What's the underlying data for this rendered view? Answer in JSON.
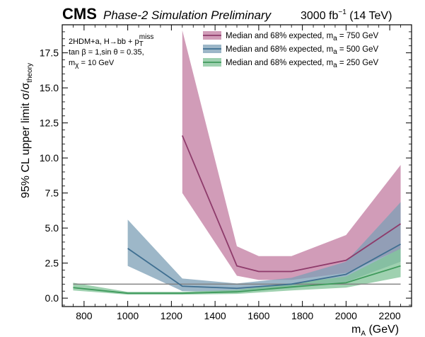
{
  "header": {
    "experiment": "CMS",
    "subtitle": "Phase-2 Simulation Preliminary",
    "lumi_prefix": "3000 fb",
    "lumi_exp": "−1",
    "lumi_suffix": " (14 TeV)"
  },
  "info": {
    "line1": "2HDM+a, H→bb + p",
    "line1_sub": "T",
    "line1_sup": "miss",
    "line2": "tan β = 1,sin θ = 0.35,",
    "line3": "m",
    "line3_sub": "χ",
    "line3_rest": " = 10 GeV"
  },
  "axes": {
    "xlabel_main": "m",
    "xlabel_sub": "A",
    "xlabel_rest": " (GeV)",
    "ylabel_main": "95% CL upper limit σ/σ",
    "ylabel_sub": "theory"
  },
  "chart_data": {
    "type": "line",
    "xlim": [
      700,
      2300
    ],
    "ylim": [
      -0.6,
      19.5
    ],
    "xticks": [
      800,
      1000,
      1200,
      1400,
      1600,
      1800,
      2000,
      2200
    ],
    "yticks": [
      0.0,
      2.5,
      5.0,
      7.5,
      10.0,
      12.5,
      15.0,
      17.5
    ],
    "ytick_labels": [
      "0.0",
      "2.5",
      "5.0",
      "7.5",
      "10.0",
      "12.5",
      "15.0",
      "17.5"
    ],
    "reference_line": 1.0,
    "reference_color": "#808080",
    "legend_position": "top-right",
    "series": [
      {
        "name": "Median and 68% expected, m",
        "name_sub": "a",
        "name_rest": " = 750 GeV",
        "line_color": "#8e3b6b",
        "band_color": "#c27ba0",
        "x": [
          1250,
          1500,
          1600,
          1750,
          2000,
          2250
        ],
        "median": [
          11.6,
          2.3,
          1.9,
          1.9,
          2.7,
          5.3
        ],
        "low": [
          7.5,
          1.6,
          1.3,
          1.3,
          1.8,
          3.5
        ],
        "high": [
          19.1,
          3.7,
          3.0,
          3.0,
          4.5,
          9.5
        ]
      },
      {
        "name": "Median and 68% expected, m",
        "name_sub": "a",
        "name_rest": " = 500 GeV",
        "line_color": "#3f6f91",
        "band_color": "#7c9fb5",
        "x": [
          1000,
          1250,
          1500,
          1750,
          2000,
          2250
        ],
        "median": [
          3.55,
          0.85,
          0.7,
          1.0,
          1.7,
          3.85
        ],
        "low": [
          2.3,
          0.5,
          0.45,
          0.7,
          1.15,
          2.6
        ],
        "high": [
          5.6,
          1.4,
          1.05,
          1.45,
          2.6,
          6.85
        ]
      },
      {
        "name": "Median and 68% expected, m",
        "name_sub": "a",
        "name_rest": " = 250 GeV",
        "line_color": "#3f9a5c",
        "band_color": "#7fc296",
        "x": [
          750,
          1000,
          1250,
          1500,
          1750,
          2000,
          2250
        ],
        "median": [
          0.75,
          0.35,
          0.35,
          0.45,
          0.8,
          1.1,
          2.3
        ],
        "low": [
          0.55,
          0.25,
          0.25,
          0.3,
          0.55,
          0.75,
          1.5
        ],
        "high": [
          1.1,
          0.45,
          0.45,
          0.6,
          1.05,
          1.55,
          3.55
        ]
      }
    ]
  }
}
